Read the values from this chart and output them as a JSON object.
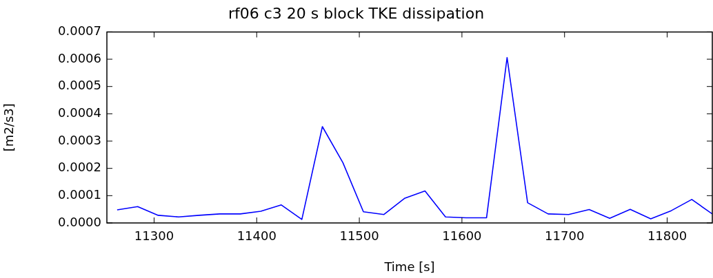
{
  "chart_data": {
    "type": "line",
    "title": "rf06 c3 20 s block TKE dissipation",
    "xlabel": "Time [s]",
    "ylabel": "[m2/s3]",
    "color": "#0000ff",
    "marker": "none",
    "x": [
      11264,
      11284,
      11304,
      11324,
      11344,
      11364,
      11384,
      11404,
      11424,
      11444,
      11464,
      11484,
      11504,
      11524,
      11544,
      11564,
      11584,
      11604,
      11624,
      11644,
      11664,
      11684,
      11704,
      11724,
      11744,
      11764,
      11784,
      11804,
      11824,
      11844
    ],
    "values": [
      4.8e-05,
      6e-05,
      2.8e-05,
      2.2e-05,
      2.8e-05,
      3.3e-05,
      3.3e-05,
      4.3e-05,
      6.6e-05,
      1.3e-05,
      0.000353,
      0.000221,
      4.1e-05,
      3.1e-05,
      9e-05,
      0.000117,
      2.2e-05,
      1.9e-05,
      1.9e-05,
      0.000606,
      7.4e-05,
      3.3e-05,
      3.1e-05,
      4.9e-05,
      1.7e-05,
      5e-05,
      1.5e-05,
      4.5e-05,
      8.6e-05,
      3.3e-05
    ],
    "xlim": [
      11254,
      11844
    ],
    "ylim": [
      0,
      0.0007
    ],
    "xticks": [
      11300,
      11400,
      11500,
      11600,
      11700,
      11800
    ],
    "yticks": [
      {
        "value": 0,
        "label": "0.0000"
      },
      {
        "value": 0.0001,
        "label": "0.0001"
      },
      {
        "value": 0.0002,
        "label": "0.0002"
      },
      {
        "value": 0.0003,
        "label": "0.0003"
      },
      {
        "value": 0.0004,
        "label": "0.0004"
      },
      {
        "value": 0.0005,
        "label": "0.0005"
      },
      {
        "value": 0.0006,
        "label": "0.0006"
      },
      {
        "value": 0.0007,
        "label": "0.0007"
      }
    ]
  }
}
